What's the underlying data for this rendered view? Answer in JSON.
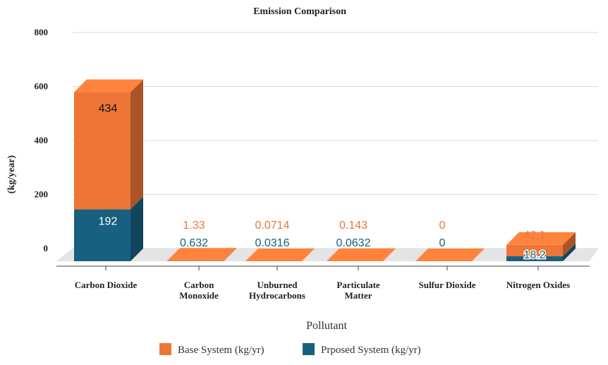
{
  "chart_data": {
    "type": "bar",
    "stacked": true,
    "style": "3d",
    "title": "Emission Comparison",
    "xlabel": "Pollutant",
    "ylabel": "(kg/year)",
    "ylim": [
      0,
      800
    ],
    "yticks": [
      0,
      200,
      400,
      600,
      800
    ],
    "grid": true,
    "legend_position": "bottom",
    "categories": [
      "Carbon Dioxide",
      "Carbon Monoxide",
      "Unburned Hydrocarbons",
      "Particulate Matter",
      "Sulfur Dioxide",
      "Nitrogen Oxides"
    ],
    "category_lines": [
      [
        "Carbon Dioxide"
      ],
      [
        "Carbon",
        "Monoxide"
      ],
      [
        "Unburned",
        "Hydrocarbons"
      ],
      [
        "Particulate",
        "Matter"
      ],
      [
        "Sulfur Dioxide"
      ],
      [
        "Nitrogen Oxides"
      ]
    ],
    "series": [
      {
        "name": "Base System (kg/yr)",
        "color": "#ED7536",
        "values": [
          434,
          1.33,
          0.0714,
          0.143,
          0,
          42.1
        ],
        "labels": [
          "434",
          "1.33",
          "0.0714",
          "0.143",
          "0",
          "42.1"
        ]
      },
      {
        "name": "Prposed System (kg/yr)",
        "color": "#17607F",
        "values": [
          192,
          0.632,
          0.0316,
          0.0632,
          0,
          18.2
        ],
        "labels": [
          "192",
          "0.632",
          "0.0316",
          "0.0632",
          "0",
          "18.2"
        ]
      }
    ]
  }
}
